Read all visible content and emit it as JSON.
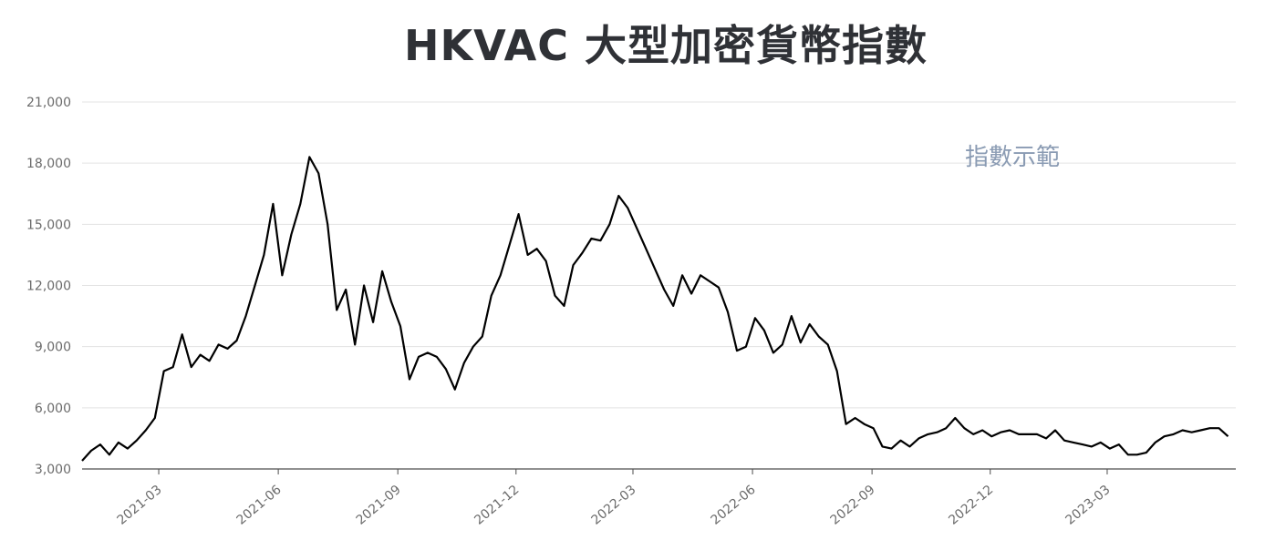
{
  "chart_data": {
    "type": "line",
    "title": "HKVAC 大型加密貨幣指數",
    "annotation": "指數示範",
    "xlabel": "",
    "ylabel": "",
    "ylim": [
      3000,
      21000
    ],
    "yticks": [
      "3,000",
      "6,000",
      "9,000",
      "12,000",
      "15,000",
      "18,000",
      "21,000"
    ],
    "xtick_labels": [
      "2021-03",
      "2021-06",
      "2021-09",
      "2021-12",
      "2022-03",
      "2022-06",
      "2022-09",
      "2022-12",
      "2023-03"
    ],
    "xtick_dates": [
      "2021-03-01",
      "2021-06-01",
      "2021-09-01",
      "2021-12-01",
      "2022-03-01",
      "2022-06-01",
      "2022-09-01",
      "2022-12-01",
      "2023-03-01"
    ],
    "grid": true,
    "line_color": "#000000",
    "series": [
      {
        "x": [
          "2021-01-01",
          "2021-01-08",
          "2021-01-15",
          "2021-01-22",
          "2021-01-29",
          "2021-02-05",
          "2021-02-12",
          "2021-02-19",
          "2021-02-26",
          "2021-03-05",
          "2021-03-12",
          "2021-03-19",
          "2021-03-26",
          "2021-04-02",
          "2021-04-09",
          "2021-04-16",
          "2021-04-23",
          "2021-04-30",
          "2021-05-07",
          "2021-05-14",
          "2021-05-21",
          "2021-05-28",
          "2021-06-04",
          "2021-06-11",
          "2021-06-18",
          "2021-06-25",
          "2021-07-02",
          "2021-07-09",
          "2021-07-16",
          "2021-07-23",
          "2021-07-30",
          "2021-08-06",
          "2021-08-13",
          "2021-08-20",
          "2021-08-27",
          "2021-09-03",
          "2021-09-10",
          "2021-09-17",
          "2021-09-24",
          "2021-10-01",
          "2021-10-08",
          "2021-10-15",
          "2021-10-22",
          "2021-10-29",
          "2021-11-05",
          "2021-11-12",
          "2021-11-19",
          "2021-11-26",
          "2021-12-03",
          "2021-12-10",
          "2021-12-17",
          "2021-12-24",
          "2021-12-31",
          "2022-01-07",
          "2022-01-14",
          "2022-01-21",
          "2022-01-28",
          "2022-02-04",
          "2022-02-11",
          "2022-02-18",
          "2022-02-25",
          "2022-03-04",
          "2022-03-11",
          "2022-03-18",
          "2022-03-25",
          "2022-04-01",
          "2022-04-08",
          "2022-04-15",
          "2022-04-22",
          "2022-04-29",
          "2022-05-06",
          "2022-05-13",
          "2022-05-20",
          "2022-05-27",
          "2022-06-03",
          "2022-06-10",
          "2022-06-17",
          "2022-06-24",
          "2022-07-01",
          "2022-07-08",
          "2022-07-15",
          "2022-07-22",
          "2022-07-29",
          "2022-08-05",
          "2022-08-12",
          "2022-08-19",
          "2022-08-26",
          "2022-09-02",
          "2022-09-09",
          "2022-09-16",
          "2022-09-23",
          "2022-09-30",
          "2022-10-07",
          "2022-10-14",
          "2022-10-21",
          "2022-10-28",
          "2022-11-04",
          "2022-11-11",
          "2022-11-18",
          "2022-11-25",
          "2022-12-02",
          "2022-12-09",
          "2022-12-16",
          "2022-12-23",
          "2022-12-30",
          "2023-01-06",
          "2023-01-13",
          "2023-01-20",
          "2023-01-27",
          "2023-02-03",
          "2023-02-10",
          "2023-02-17",
          "2023-02-24",
          "2023-03-03",
          "2023-03-10",
          "2023-03-17",
          "2023-03-24",
          "2023-03-31",
          "2023-04-07",
          "2023-04-14",
          "2023-04-21",
          "2023-04-28",
          "2023-05-05",
          "2023-05-12",
          "2023-05-19",
          "2023-05-26",
          "2023-06-02"
        ],
        "values": [
          3400,
          3900,
          4200,
          3700,
          4300,
          4000,
          4400,
          4900,
          5500,
          7800,
          8000,
          9600,
          8000,
          8600,
          8300,
          9100,
          8900,
          9300,
          10500,
          12000,
          13500,
          16000,
          12500,
          14500,
          16000,
          18300,
          17500,
          15000,
          10800,
          11800,
          9100,
          12000,
          10200,
          12700,
          11200,
          10000,
          7400,
          8500,
          8700,
          8500,
          7900,
          6900,
          8200,
          9000,
          9500,
          11500,
          12500,
          14000,
          15500,
          13500,
          13800,
          13200,
          11500,
          11000,
          13000,
          13600,
          14300,
          14200,
          15000,
          16400,
          15800,
          14800,
          13800,
          12800,
          11800,
          11000,
          12500,
          11600,
          12500,
          12200,
          11900,
          10700,
          8800,
          9000,
          10400,
          9800,
          8700,
          9100,
          10500,
          9200,
          10100,
          9500,
          9100,
          7800,
          5200,
          5500,
          5200,
          5000,
          4100,
          4000,
          4400,
          4100,
          4500,
          4700,
          4800,
          5000,
          5500,
          5000,
          4700,
          4900,
          4600,
          4800,
          4900,
          4700,
          4700,
          4700,
          4500,
          4900,
          4400,
          4300,
          4200,
          4100,
          4300,
          4000,
          4200,
          3700,
          3700,
          3800,
          4300,
          4600,
          4700,
          4900,
          4800,
          4900,
          5000,
          5000,
          4600
        ],
        "note": "sampled approximations read from the plotted line"
      }
    ]
  }
}
